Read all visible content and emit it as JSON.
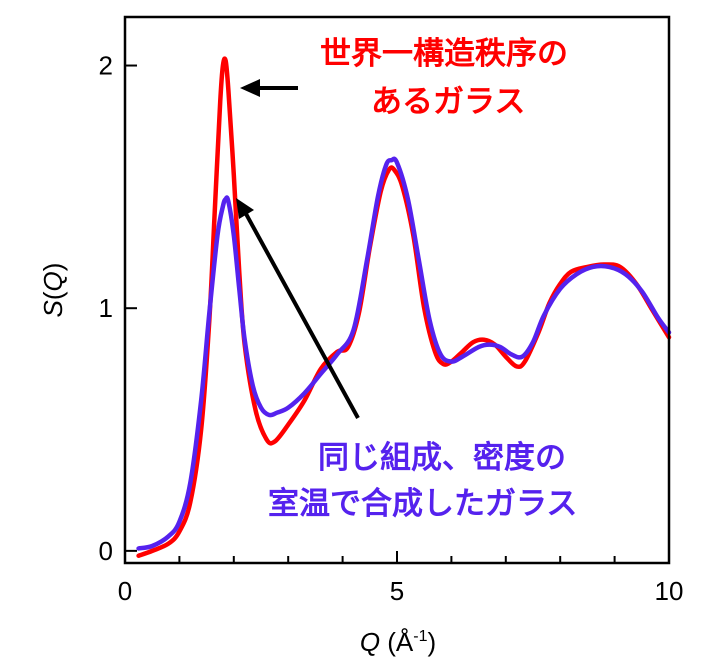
{
  "chart_data": {
    "type": "line",
    "xlabel_main": "Q",
    "xlabel_unit_open": " (Å",
    "xlabel_unit_exp": "-1",
    "xlabel_unit_close": ")",
    "ylabel_s": "S",
    "ylabel_open": "(",
    "ylabel_q": "Q",
    "ylabel_close": ")",
    "xlim": [
      0,
      10
    ],
    "ylim": [
      -0.05,
      2.2
    ],
    "xticks": [
      0,
      5,
      10
    ],
    "xtick_labels": [
      "0",
      "5",
      "10"
    ],
    "yticks": [
      0,
      1,
      2
    ],
    "ytick_labels": [
      "0",
      "1",
      "2"
    ],
    "grid": false,
    "series": [
      {
        "color": "#ff0000",
        "x": [
          0.25,
          0.5,
          0.8,
          1.0,
          1.2,
          1.4,
          1.55,
          1.65,
          1.75,
          1.8,
          1.85,
          1.9,
          2.0,
          2.1,
          2.2,
          2.4,
          2.6,
          2.75,
          3.0,
          3.3,
          3.6,
          3.9,
          4.1,
          4.3,
          4.5,
          4.7,
          4.85,
          4.95,
          5.1,
          5.3,
          5.5,
          5.7,
          5.85,
          6.0,
          6.2,
          6.4,
          6.6,
          6.8,
          7.0,
          7.2,
          7.35,
          7.6,
          7.8,
          8.0,
          8.2,
          8.5,
          8.8,
          9.1,
          9.4,
          9.7,
          10.0
        ],
        "y": [
          -0.02,
          0.0,
          0.03,
          0.08,
          0.2,
          0.5,
          0.95,
          1.4,
          1.85,
          2.0,
          2.02,
          1.9,
          1.55,
          1.15,
          0.85,
          0.58,
          0.46,
          0.45,
          0.52,
          0.62,
          0.75,
          0.82,
          0.84,
          0.98,
          1.25,
          1.48,
          1.57,
          1.57,
          1.5,
          1.3,
          1.0,
          0.82,
          0.77,
          0.78,
          0.82,
          0.86,
          0.87,
          0.85,
          0.8,
          0.76,
          0.78,
          0.9,
          1.02,
          1.1,
          1.15,
          1.17,
          1.18,
          1.17,
          1.1,
          0.99,
          0.88
        ]
      },
      {
        "color": "#5522ee",
        "x": [
          0.25,
          0.5,
          0.8,
          1.0,
          1.2,
          1.4,
          1.55,
          1.7,
          1.8,
          1.85,
          1.9,
          2.0,
          2.1,
          2.2,
          2.35,
          2.5,
          2.65,
          2.8,
          3.0,
          3.3,
          3.6,
          3.9,
          4.2,
          4.45,
          4.65,
          4.8,
          4.9,
          5.0,
          5.2,
          5.4,
          5.6,
          5.8,
          6.0,
          6.2,
          6.5,
          6.7,
          6.9,
          7.1,
          7.3,
          7.5,
          7.7,
          8.0,
          8.3,
          8.6,
          8.9,
          9.2,
          9.5,
          9.8,
          10.0
        ],
        "y": [
          0.01,
          0.02,
          0.06,
          0.12,
          0.28,
          0.62,
          0.98,
          1.3,
          1.42,
          1.45,
          1.44,
          1.3,
          1.08,
          0.87,
          0.68,
          0.59,
          0.56,
          0.57,
          0.59,
          0.65,
          0.73,
          0.81,
          0.91,
          1.2,
          1.46,
          1.59,
          1.61,
          1.6,
          1.45,
          1.2,
          0.95,
          0.81,
          0.78,
          0.8,
          0.84,
          0.85,
          0.84,
          0.81,
          0.8,
          0.86,
          0.97,
          1.08,
          1.14,
          1.17,
          1.17,
          1.14,
          1.07,
          0.96,
          0.9
        ]
      }
    ],
    "annotations": [
      {
        "lines": [
          "世界一構造秩序の",
          "あるガラス"
        ],
        "color": "#ff0000"
      },
      {
        "lines": [
          "同じ組成、密度の",
          "室温で合成したガラス"
        ],
        "color": "#5522ee"
      }
    ]
  }
}
